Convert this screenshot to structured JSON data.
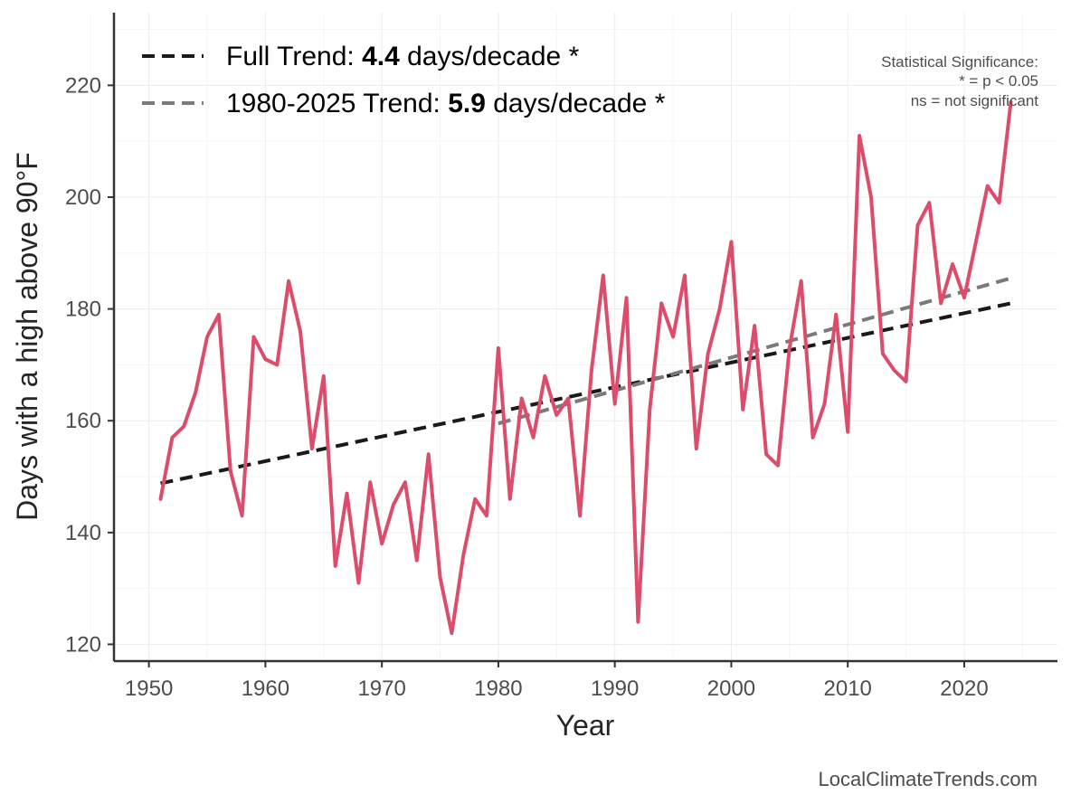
{
  "chart_data": {
    "type": "line",
    "xlabel": "Year",
    "ylabel": "Days with a high above 90°F",
    "xlim": [
      1947,
      2028
    ],
    "ylim": [
      117,
      233
    ],
    "x_ticks": [
      1950,
      1960,
      1970,
      1980,
      1990,
      2000,
      2010,
      2020
    ],
    "y_ticks": [
      120,
      140,
      160,
      180,
      200,
      220
    ],
    "grid": true,
    "legend_position": "top-left",
    "series": [
      {
        "name": "Days above 90°F",
        "color": "#dc4c6b",
        "x": [
          1951,
          1952,
          1953,
          1954,
          1955,
          1956,
          1957,
          1958,
          1959,
          1960,
          1961,
          1962,
          1963,
          1964,
          1965,
          1966,
          1967,
          1968,
          1969,
          1970,
          1971,
          1972,
          1973,
          1974,
          1975,
          1976,
          1977,
          1978,
          1979,
          1980,
          1981,
          1982,
          1983,
          1984,
          1985,
          1986,
          1987,
          1988,
          1989,
          1990,
          1991,
          1992,
          1993,
          1994,
          1995,
          1996,
          1997,
          1998,
          1999,
          2000,
          2001,
          2002,
          2003,
          2004,
          2005,
          2006,
          2007,
          2008,
          2009,
          2010,
          2011,
          2012,
          2013,
          2014,
          2015,
          2016,
          2017,
          2018,
          2019,
          2020,
          2021,
          2022,
          2023,
          2024
        ],
        "values": [
          146,
          157,
          159,
          165,
          175,
          179,
          151,
          143,
          175,
          171,
          170,
          185,
          176,
          155,
          168,
          134,
          147,
          131,
          149,
          138,
          145,
          149,
          135,
          154,
          132,
          122,
          136,
          146,
          143,
          173,
          146,
          164,
          157,
          168,
          161,
          164,
          143,
          169,
          186,
          163,
          182,
          124,
          162,
          181,
          175,
          186,
          155,
          172,
          180,
          192,
          162,
          177,
          154,
          152,
          173,
          185,
          157,
          163,
          179,
          158,
          211,
          200,
          172,
          169,
          167,
          195,
          199,
          181,
          188,
          182,
          192,
          202,
          199,
          217
        ]
      }
    ],
    "trends": [
      {
        "name": "Full Trend",
        "label_prefix": "Full Trend: ",
        "value": "4.4",
        "label_suffix": " days/decade *",
        "color": "#1a1a1a",
        "x": [
          1951,
          2024
        ],
        "values": [
          148.8,
          181.0
        ]
      },
      {
        "name": "1980-2025 Trend",
        "label_prefix": "1980-2025 Trend: ",
        "value": "5.9",
        "label_suffix": " days/decade *",
        "color": "#7a7a7a",
        "x": [
          1980,
          2024
        ],
        "values": [
          159.5,
          185.5
        ]
      }
    ],
    "significance_note": [
      "Statistical Significance:",
      "* = p < 0.05",
      "ns = not significant"
    ],
    "credit": "LocalClimateTrends.com"
  }
}
